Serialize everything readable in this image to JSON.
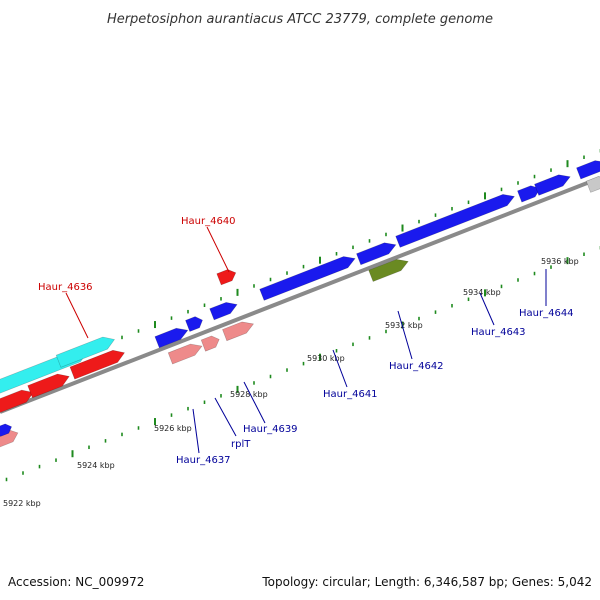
{
  "title": "Herpetosiphon aurantiacus ATCC 23779, complete genome",
  "footer": {
    "accession": "Accession: NC_009972",
    "topology": "Topology: circular; Length: 6,346,587 bp; Genes: 5,042"
  },
  "colors": {
    "backbone": "#8a8a8a",
    "tick": "#1e8a1e",
    "forward_gene": "#1a1aee",
    "reverse_gene": "#ee1a1a",
    "rrna_like": "#33eeee",
    "pseudo_pink": "#ee8a8a",
    "olive": "#6a8a22",
    "grey_gene": "#c8c8c8",
    "red_label": "#cc0000",
    "blue_label": "#000099"
  },
  "scale_labels": [
    "5922 kbp",
    "5924 kbp",
    "5926 kbp",
    "5928 kbp",
    "5930 kbp",
    "5932 kbp",
    "5934 kbp",
    "5936 kbp"
  ],
  "gene_labels": [
    {
      "text": "Haur_4636",
      "strand": "reverse"
    },
    {
      "text": "Haur_4640",
      "strand": "reverse"
    },
    {
      "text": "Haur_4637",
      "strand": "forward"
    },
    {
      "text": "rplT",
      "strand": "forward"
    },
    {
      "text": "Haur_4639",
      "strand": "forward"
    },
    {
      "text": "Haur_4641",
      "strand": "forward"
    },
    {
      "text": "Haur_4642",
      "strand": "forward"
    },
    {
      "text": "Haur_4643",
      "strand": "forward"
    },
    {
      "text": "Haur_4644",
      "strand": "forward"
    }
  ]
}
